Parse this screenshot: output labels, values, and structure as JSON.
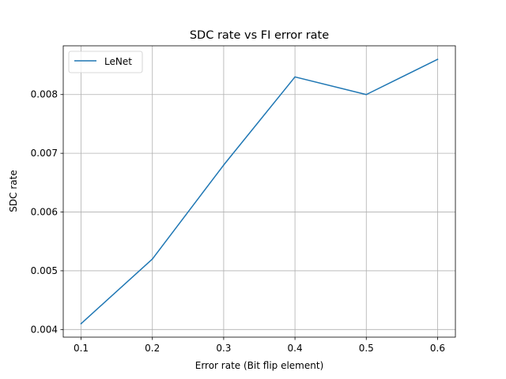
{
  "chart_data": {
    "type": "line",
    "title": "SDC rate vs FI error rate",
    "xlabel": "Error rate (Bit flip element)",
    "ylabel": "SDC rate",
    "x": [
      0.1,
      0.2,
      0.3,
      0.4,
      0.5,
      0.6
    ],
    "x_ticks": [
      "0.1",
      "0.2",
      "0.3",
      "0.4",
      "0.5",
      "0.6"
    ],
    "y_ticks": [
      "0.004",
      "0.005",
      "0.006",
      "0.007",
      "0.008"
    ],
    "xlim": [
      0.075,
      0.625
    ],
    "ylim": [
      0.00387,
      0.00883
    ],
    "grid": true,
    "legend_position": "upper-left",
    "series": [
      {
        "name": "LeNet",
        "color": "#1f77b4",
        "values": [
          0.0041,
          0.0052,
          0.0068,
          0.0083,
          0.008,
          0.0086
        ]
      }
    ]
  }
}
